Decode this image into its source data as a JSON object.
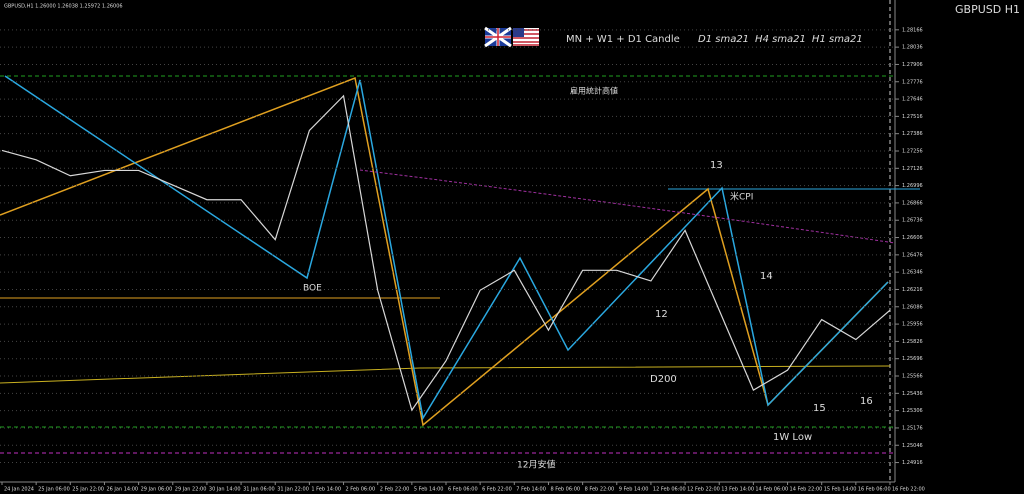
{
  "chart_data": {
    "type": "line",
    "header": "GBPUSD,H1 1.26000 1.26038 1.25972 1.26006",
    "title": "GBPUSD H1",
    "legend_title": "MN + W1 + D1 Candle",
    "legend": [
      {
        "text": "D1 sma21",
        "color": "#d040d0"
      },
      {
        "text": "H4 sma21",
        "color": "#e0a020"
      },
      {
        "text": "H1 sma21",
        "color": "#2aa8e0"
      }
    ],
    "categories": [
      "24 Jan 2024",
      "25 Jan 06:00",
      "25 Jan 22:00",
      "26 Jan 14:00",
      "29 Jan 06:00",
      "29 Jan 22:00",
      "30 Jan 14:00",
      "31 Jan 06:00",
      "31 Jan 22:00",
      "1 Feb 14:00",
      "2 Feb 06:00",
      "2 Feb 22:00",
      "5 Feb 14:00",
      "6 Feb 06:00",
      "6 Feb 22:00",
      "7 Feb 14:00",
      "8 Feb 06:00",
      "8 Feb 22:00",
      "9 Feb 14:00",
      "12 Feb 06:00",
      "12 Feb 22:00",
      "13 Feb 14:00",
      "14 Feb 06:00",
      "14 Feb 22:00",
      "15 Feb 14:00",
      "16 Feb 06:00",
      "16 Feb 22:00"
    ],
    "values": [
      1.2726,
      1.2719,
      1.2707,
      1.2711,
      1.2711,
      1.27,
      1.2689,
      1.2689,
      1.2659,
      1.2741,
      1.2767,
      1.2621,
      1.2531,
      1.2568,
      1.2621,
      1.2636,
      1.2591,
      1.2636,
      1.2636,
      1.2628,
      1.2666,
      1.2606,
      1.2546,
      1.2561,
      1.2599,
      1.2584,
      1.2606
    ],
    "color": "#d8d8d8",
    "ylim": [
      1.2477,
      1.2839
    ],
    "yticks": [
      1.24916,
      1.25046,
      1.25176,
      1.25306,
      1.25436,
      1.25566,
      1.25696,
      1.25826,
      1.25956,
      1.26086,
      1.26216,
      1.26346,
      1.26476,
      1.26606,
      1.26736,
      1.26866,
      1.26996,
      1.27126,
      1.27256,
      1.27386,
      1.27516,
      1.27646,
      1.27776,
      1.27906,
      1.28036,
      1.28166
    ],
    "grid": true,
    "annotations": [
      {
        "text": "雇用統計高値",
        "color": "#20c020"
      },
      {
        "text": "13",
        "color": "#d03040"
      },
      {
        "text": "米CPI",
        "color": "#2aa8e0"
      },
      {
        "text": "14",
        "color": "#d03040"
      },
      {
        "text": "BOE",
        "color": "#2aa8e0"
      },
      {
        "text": "12",
        "color": "#e0a020"
      },
      {
        "text": "D200",
        "color": "#e0a020"
      },
      {
        "text": "15",
        "color": "#e0a020"
      },
      {
        "text": "16",
        "color": "#e0a020"
      },
      {
        "text": "1W Low",
        "color": "#20c020"
      },
      {
        "text": "12月安値",
        "color": "#c030c0"
      }
    ]
  }
}
